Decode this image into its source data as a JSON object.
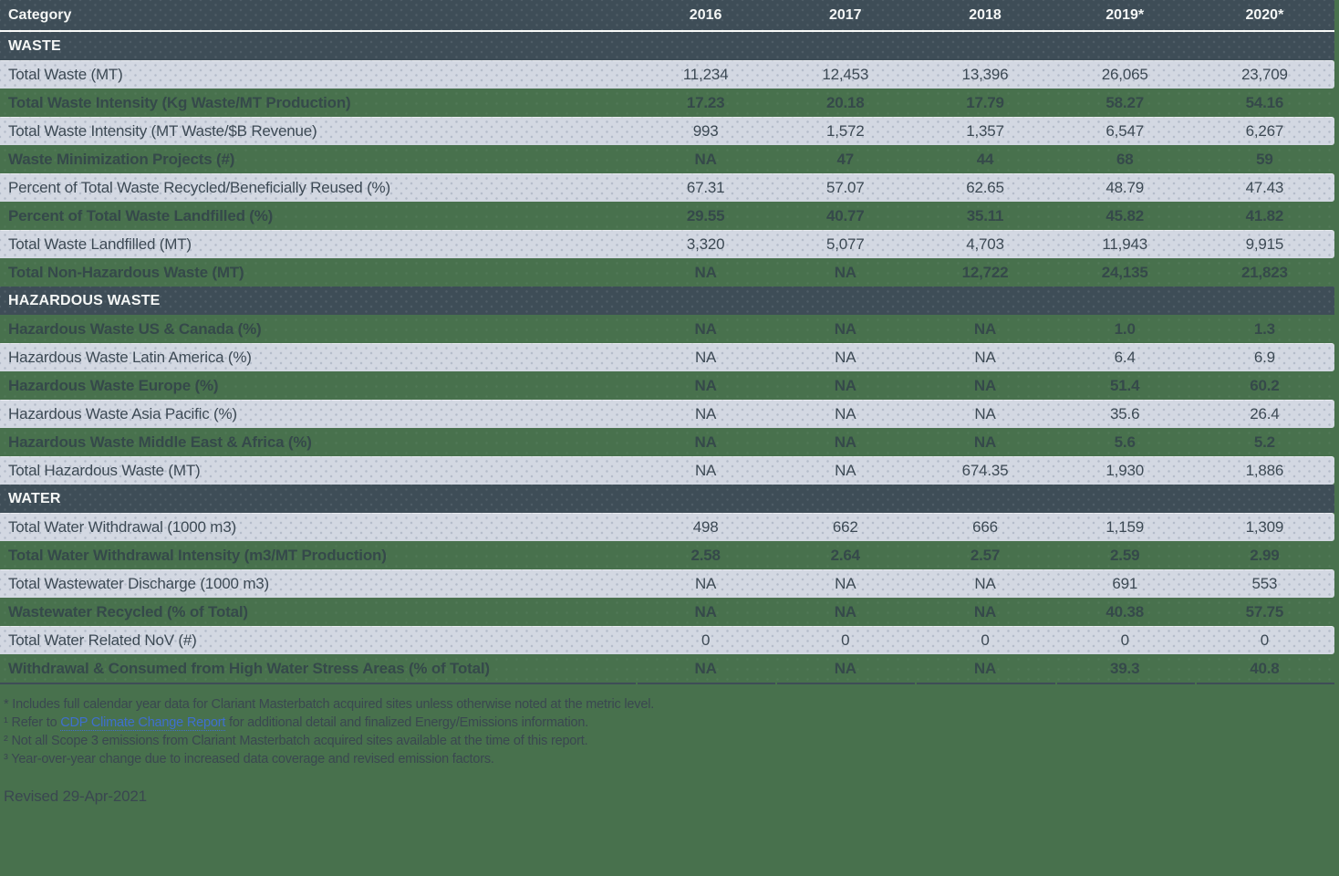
{
  "colors": {
    "page_background": "#48714d",
    "dark_band": "#3e4d57",
    "gray_row": "#d3d8e2",
    "dark_text": "#3a4750",
    "link_blue": "#3f6fce",
    "header_text": "#f5f7f6"
  },
  "chart_data": {
    "type": "table",
    "columns": [
      "Category",
      "2016",
      "2017",
      "2018",
      "2019*",
      "2020*"
    ],
    "sections": [
      {
        "title": "WASTE",
        "rows": [
          {
            "label": "Total Waste (MT)",
            "values": [
              "11,234",
              "12,453",
              "13,396",
              "26,065",
              "23,709"
            ]
          },
          {
            "label": "Total Waste Intensity (Kg Waste/MT Production)",
            "values": [
              "17.23",
              "20.18",
              "17.79",
              "58.27",
              "54.16"
            ]
          },
          {
            "label": "Total Waste Intensity (MT Waste/$B Revenue)",
            "values": [
              "993",
              "1,572",
              "1,357",
              "6,547",
              "6,267"
            ]
          },
          {
            "label": "Waste Minimization Projects (#)",
            "values": [
              "NA",
              "47",
              "44",
              "68",
              "59"
            ]
          },
          {
            "label": "Percent of Total Waste Recycled/Beneficially Reused (%)",
            "values": [
              "67.31",
              "57.07",
              "62.65",
              "48.79",
              "47.43"
            ]
          },
          {
            "label": "Percent of Total Waste Landfilled (%)",
            "values": [
              "29.55",
              "40.77",
              "35.11",
              "45.82",
              "41.82"
            ]
          },
          {
            "label": "Total Waste Landfilled (MT)",
            "values": [
              "3,320",
              "5,077",
              "4,703",
              "11,943",
              "9,915"
            ]
          },
          {
            "label": "Total Non-Hazardous Waste (MT)",
            "values": [
              "NA",
              "NA",
              "12,722",
              "24,135",
              "21,823"
            ]
          }
        ]
      },
      {
        "title": "HAZARDOUS WASTE",
        "rows": [
          {
            "label": "Hazardous Waste US & Canada (%)",
            "values": [
              "NA",
              "NA",
              "NA",
              "1.0",
              "1.3"
            ]
          },
          {
            "label": "Hazardous Waste Latin America (%)",
            "values": [
              "NA",
              "NA",
              "NA",
              "6.4",
              "6.9"
            ]
          },
          {
            "label": "Hazardous Waste Europe (%)",
            "values": [
              "NA",
              "NA",
              "NA",
              "51.4",
              "60.2"
            ]
          },
          {
            "label": "Hazardous Waste Asia Pacific (%)",
            "values": [
              "NA",
              "NA",
              "NA",
              "35.6",
              "26.4"
            ]
          },
          {
            "label": "Hazardous Waste Middle East & Africa (%)",
            "values": [
              "NA",
              "NA",
              "NA",
              "5.6",
              "5.2"
            ]
          },
          {
            "label": "Total Hazardous Waste (MT)",
            "values": [
              "NA",
              "NA",
              "674.35",
              "1,930",
              "1,886"
            ]
          }
        ]
      },
      {
        "title": "WATER",
        "rows": [
          {
            "label": "Total Water Withdrawal (1000 m3)",
            "values": [
              "498",
              "662",
              "666",
              "1,159",
              "1,309"
            ]
          },
          {
            "label": "Total Water Withdrawal Intensity (m3/MT Production)",
            "values": [
              "2.58",
              "2.64",
              "2.57",
              "2.59",
              "2.99"
            ]
          },
          {
            "label": "Total Wastewater Discharge (1000 m3)",
            "values": [
              "NA",
              "NA",
              "NA",
              "691",
              "553"
            ]
          },
          {
            "label": "Wastewater Recycled (% of Total)",
            "values": [
              "NA",
              "NA",
              "NA",
              "40.38",
              "57.75"
            ]
          },
          {
            "label": "Total Water Related NoV (#)",
            "values": [
              "0",
              "0",
              "0",
              "0",
              "0"
            ]
          },
          {
            "label": "Withdrawal & Consumed from High Water Stress Areas (% of Total)",
            "values": [
              "NA",
              "NA",
              "NA",
              "39.3",
              "40.8"
            ]
          }
        ]
      }
    ]
  },
  "footnotes": {
    "line1": "* Includes full calendar year data for Clariant Masterbatch acquired sites unless otherwise noted at the metric level.",
    "line2_pre": "¹ Refer to ",
    "line2_link": "CDP Climate Change Report",
    "line2_post": " for additional detail and finalized Energy/Emissions information.",
    "line3": "² Not all Scope 3 emissions from Clariant Masterbatch acquired sites available at the time of this report.",
    "line4": "³ Year-over-year change due to increased data coverage and revised emission factors.",
    "revised": "Revised 29-Apr-2021"
  }
}
